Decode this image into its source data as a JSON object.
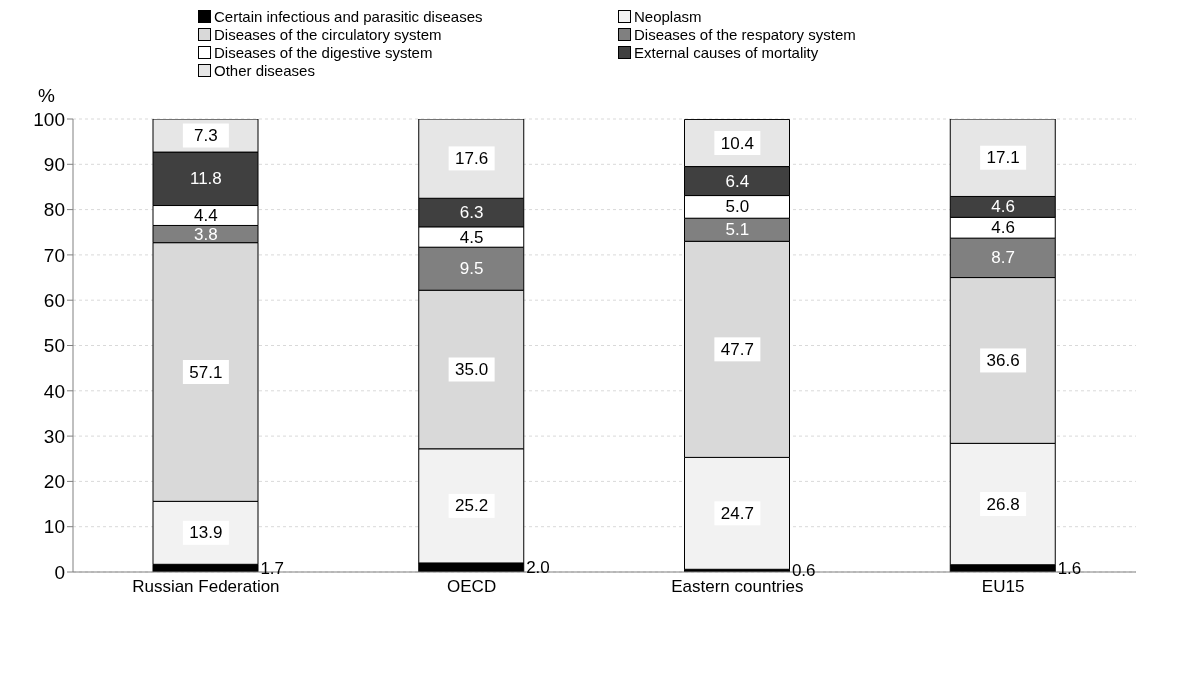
{
  "chart_data": {
    "type": "bar",
    "stacked": true,
    "ylabel": "%",
    "categories": [
      "Russian Federation",
      "OECD",
      "Eastern countries",
      "EU15"
    ],
    "series": [
      {
        "name": "Certain infectious and parasitic diseases",
        "color": "#000000",
        "values": [
          1.7,
          2.0,
          0.6,
          1.6
        ],
        "value_labels": [
          "1.7",
          "2.0",
          "0.6",
          "1.6"
        ]
      },
      {
        "name": "Neoplasm",
        "color": "#f2f2f2",
        "values": [
          13.9,
          25.2,
          24.7,
          26.8
        ],
        "value_labels": [
          "13.9",
          "25.2",
          "24.7",
          "26.8"
        ]
      },
      {
        "name": "Diseases of the circulatory system",
        "color": "#d9d9d9",
        "values": [
          57.1,
          35.0,
          47.7,
          36.6
        ],
        "value_labels": [
          "57.1",
          "35.0",
          "47.7",
          "36.6"
        ]
      },
      {
        "name": "Diseases of the respatory system",
        "color": "#808080",
        "values": [
          3.8,
          9.5,
          5.1,
          8.7
        ],
        "value_labels": [
          "3.8",
          "9.5",
          "5.1",
          "8.7"
        ]
      },
      {
        "name": "Diseases of the digestive system",
        "color": "#ffffff",
        "values": [
          4.4,
          4.5,
          5.0,
          4.6
        ],
        "value_labels": [
          "4.4",
          "4.5",
          "5.0",
          "4.6"
        ]
      },
      {
        "name": "External causes of mortality",
        "color": "#404040",
        "values": [
          11.8,
          6.3,
          6.4,
          4.6
        ],
        "value_labels": [
          "11.8",
          "6.3",
          "6.4",
          "4.6"
        ]
      },
      {
        "name": "Other diseases",
        "color": "#e6e6e6",
        "values": [
          7.3,
          17.6,
          10.4,
          17.1
        ],
        "value_labels": [
          "7.3",
          "17.6",
          "10.4",
          "17.1"
        ]
      }
    ],
    "ylim": [
      0,
      100
    ],
    "yticks": [
      0,
      10,
      20,
      30,
      40,
      50,
      60,
      70,
      80,
      90,
      100
    ],
    "grid": "y",
    "legend": "top"
  }
}
